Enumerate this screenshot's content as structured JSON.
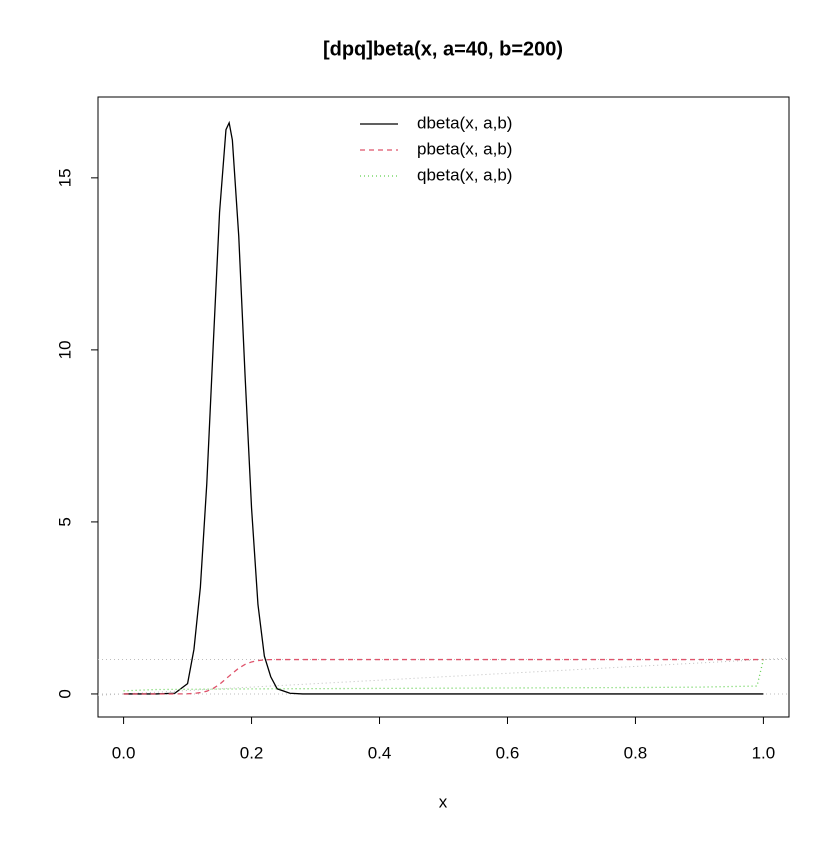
{
  "chart_data": {
    "type": "line",
    "title": "[dpq]beta(x, a=40, b=200)",
    "x_label": "x",
    "x": [
      0,
      0.05,
      0.08,
      0.1,
      0.11,
      0.12,
      0.13,
      0.14,
      0.15,
      0.16,
      0.165,
      0.17,
      0.18,
      0.19,
      0.2,
      0.21,
      0.22,
      0.23,
      0.24,
      0.26,
      0.28,
      0.3,
      0.4,
      0.6,
      0.8,
      0.9,
      0.99,
      1.0
    ],
    "series": [
      {
        "name": "dbeta(x, a,b)",
        "color": "#000000",
        "dash": "none",
        "values": [
          0,
          0,
          0.02,
          0.3,
          1.3,
          3.1,
          6.1,
          10.1,
          14.0,
          16.4,
          16.6,
          16.1,
          13.3,
          9.2,
          5.4,
          2.6,
          1.1,
          0.5,
          0.15,
          0.02,
          0,
          0,
          0,
          0,
          0,
          0,
          0,
          0
        ]
      },
      {
        "name": "pbeta(x, a,b)",
        "color": "#DF536B",
        "dash": "5,4",
        "values": [
          0,
          0,
          0,
          0.005,
          0.015,
          0.04,
          0.08,
          0.16,
          0.28,
          0.44,
          0.52,
          0.6,
          0.75,
          0.86,
          0.93,
          0.97,
          0.99,
          0.997,
          1,
          1,
          1,
          1,
          1,
          1,
          1,
          1,
          1,
          1
        ]
      },
      {
        "name": "qbeta(x, a,b)",
        "color": "#61D04F",
        "dash": "1,3",
        "values": [
          0.09,
          0.128,
          0.133,
          0.136,
          0.137,
          0.138,
          0.139,
          0.14,
          0.142,
          0.143,
          0.143,
          0.144,
          0.145,
          0.146,
          0.147,
          0.148,
          0.149,
          0.15,
          0.151,
          0.152,
          0.153,
          0.154,
          0.161,
          0.173,
          0.187,
          0.198,
          0.23,
          1
        ]
      }
    ],
    "hlines": [
      0,
      1
    ],
    "abline": {
      "intercept": 0,
      "slope": 1
    },
    "reference_color": "#BEBEBE",
    "xlim": [
      -0.04,
      1.04
    ],
    "xticks": [
      {
        "value": 0,
        "label": "0.0"
      },
      0.2,
      0.4,
      0.6,
      0.8,
      {
        "value": 1,
        "label": "1.0"
      }
    ],
    "ylim": [
      -0.67,
      17.35
    ],
    "yticks": [
      0,
      5,
      10,
      15
    ],
    "legend": "top"
  }
}
